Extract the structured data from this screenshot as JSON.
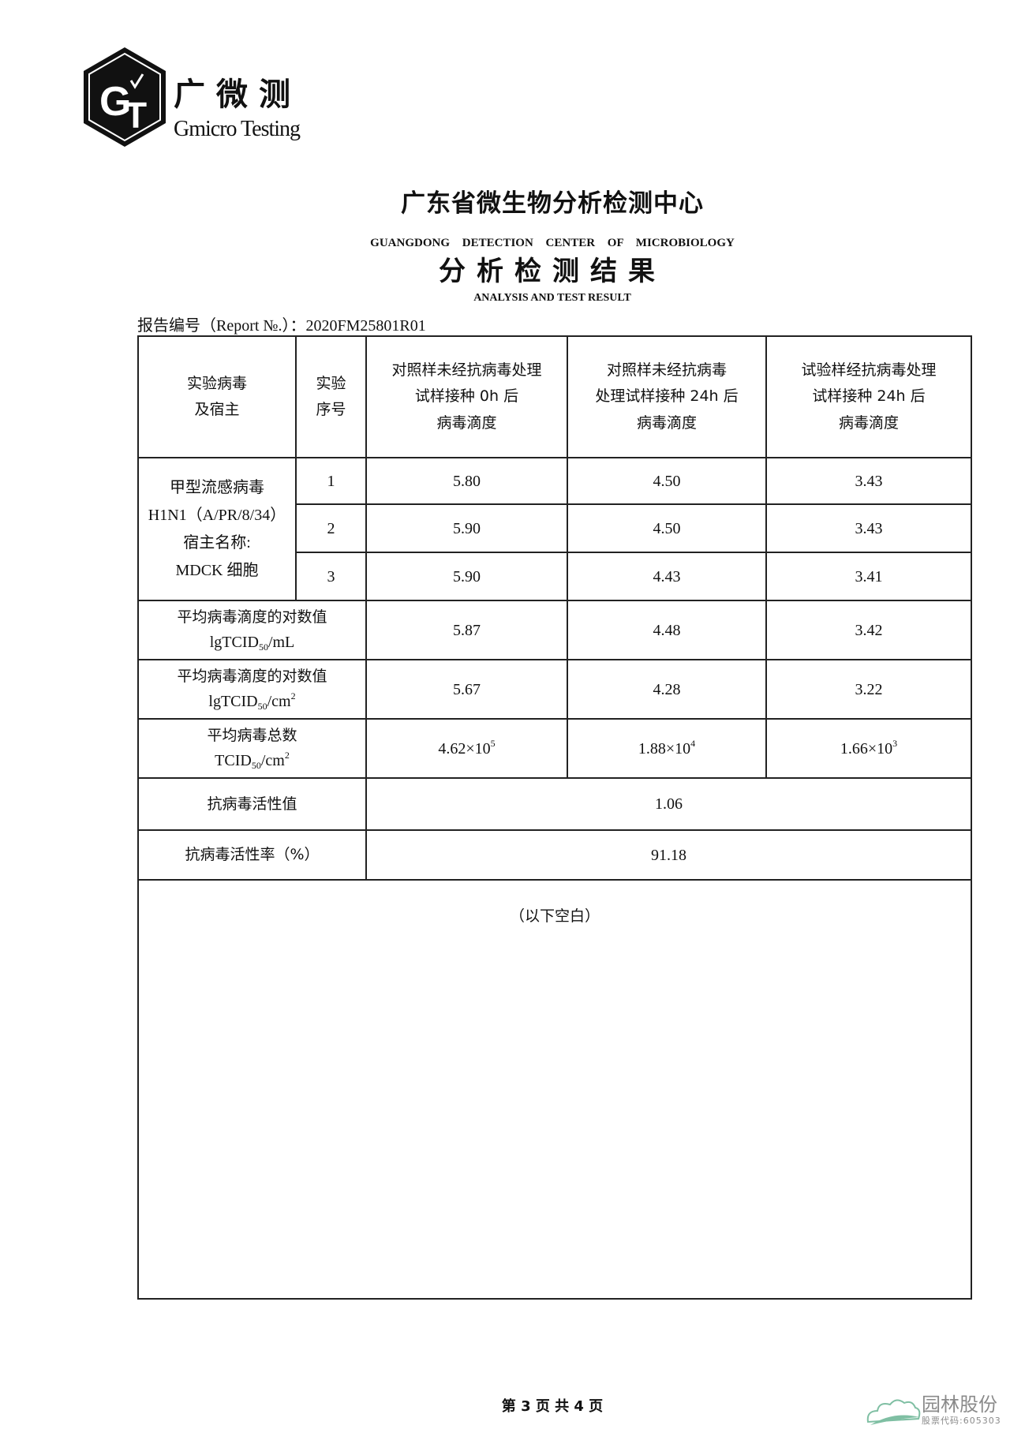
{
  "logo": {
    "brand_cn": "广微测",
    "brand_en": "Gmicro Testing",
    "mark": "GT"
  },
  "header": {
    "title": "广东省微生物分析检测中心",
    "title_en": "GUANGDONG DETECTION CENTER OF MICROBIOLOGY",
    "subtitle": "分析检测结果",
    "subtitle_en": "ANALYSIS AND TEST RESULT",
    "report_no": "报告编号（Report №.）：2020FM25801R01"
  },
  "table": {
    "headers": [
      "实验病毒\n及宿主",
      "实验\n序号",
      "对照样未经抗病毒处理\n试样接种 0h 后\n病毒滴度",
      "对照样未经抗病毒\n处理试样接种 24h 后\n病毒滴度",
      "试验样经抗病毒处理\n试样接种 24h 后\n病毒滴度"
    ],
    "virus": "甲型流感病毒\nH1N1（A/PR/8/34）\n宿主名称:\nMDCK 细胞",
    "rows": [
      {
        "seq": "1",
        "c0": "5.80",
        "c24": "4.50",
        "t24": "3.43"
      },
      {
        "seq": "2",
        "c0": "5.90",
        "c24": "4.50",
        "t24": "3.43"
      },
      {
        "seq": "3",
        "c0": "5.90",
        "c24": "4.43",
        "t24": "3.41"
      }
    ],
    "avg_ml": {
      "label_cn": "平均病毒滴度的对数值",
      "unit_a": "lgTCID",
      "unit_sub": "50",
      "unit_b": "/mL",
      "values": [
        "5.87",
        "4.48",
        "3.42"
      ]
    },
    "avg_cm2": {
      "label_cn": "平均病毒滴度的对数值",
      "unit_a": "lgTCID",
      "unit_sub": "50",
      "unit_b": "/cm",
      "unit_sup": "2",
      "values": [
        "5.67",
        "4.28",
        "3.22"
      ]
    },
    "total": {
      "label_cn": "平均病毒总数",
      "unit_a": "TCID",
      "unit_sub": "50",
      "unit_b": "/cm",
      "unit_sup": "2",
      "values": [
        {
          "base": "4.62×10",
          "exp": "5"
        },
        {
          "base": "1.88×10",
          "exp": "4"
        },
        {
          "base": "1.66×10",
          "exp": "3"
        }
      ]
    },
    "activity": {
      "label": "抗病毒活性值",
      "value": "1.06"
    },
    "rate": {
      "label": "抗病毒活性率（%）",
      "value": "91.18"
    },
    "blank_note": "（以下空白）"
  },
  "footer": {
    "page": "第 3 页 共 4 页"
  },
  "watermark": {
    "name": "园林股份",
    "code": "股票代码:605303",
    "color": "#7fbfa3"
  }
}
